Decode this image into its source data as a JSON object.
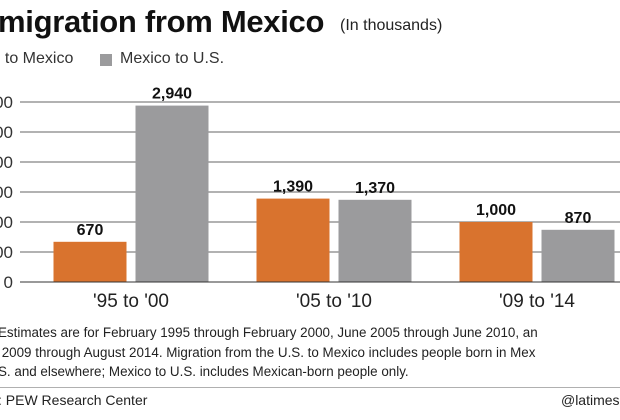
{
  "header": {
    "title": "migration from Mexico",
    "subtitle": "(In thousands)"
  },
  "legend": [
    {
      "label": ". to Mexico",
      "color": "#d9732e"
    },
    {
      "label": "Mexico to U.S.",
      "color": "#9b9b9d"
    }
  ],
  "chart_data": {
    "type": "bar",
    "categories": [
      "'95 to '00",
      "'05 to '10",
      "'09 to '14"
    ],
    "series": [
      {
        "name": ". to Mexico",
        "values": [
          670,
          1390,
          1000
        ],
        "labels": [
          "670",
          "1,390",
          "1,000"
        ],
        "color": "#d9732e"
      },
      {
        "name": "Mexico to U.S.",
        "values": [
          2940,
          1370,
          870
        ],
        "labels": [
          "2,940",
          "1,370",
          "870"
        ],
        "color": "#9b9b9d"
      }
    ],
    "y_ticks": [
      0,
      500,
      1000,
      1500,
      2000,
      2500,
      3000
    ],
    "y_tick_labels": [
      "0",
      "00",
      "00",
      "00",
      "00",
      "00",
      "00"
    ],
    "ylim": [
      0,
      3000
    ],
    "grid": true,
    "gridline_color": "#333333",
    "legend_position": "top"
  },
  "notes": {
    "lines": [
      "Estimates are for February 1995 through February 2000, June 2005 through June 2010, an",
      " 2009 through August 2014. Migration from the U.S. to Mexico includes people born in Mex",
      "S. and elsewhere; Mexico to U.S. includes Mexican-born people only."
    ]
  },
  "footer": {
    "source": ": PEW Research Center",
    "credit": "@latimesgr"
  }
}
